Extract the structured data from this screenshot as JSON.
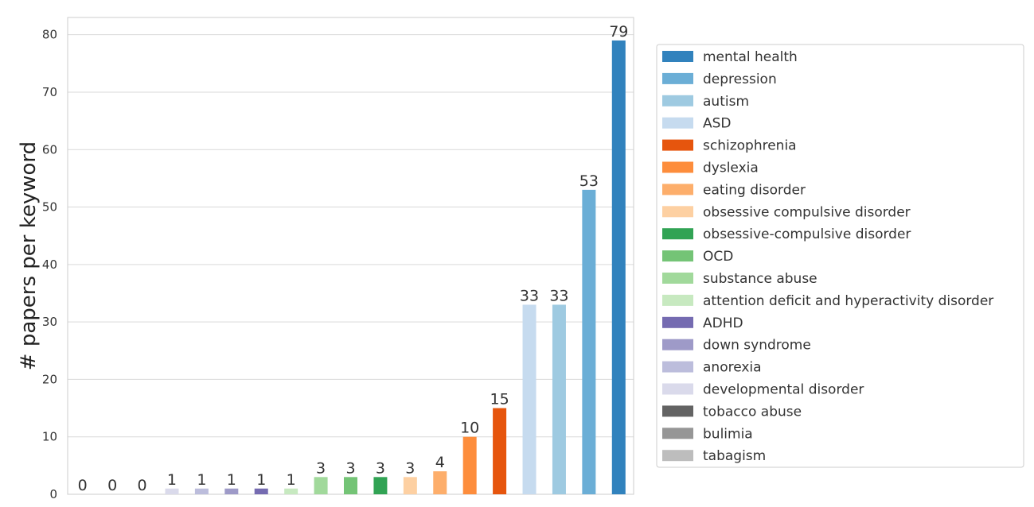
{
  "chart_data": {
    "type": "bar",
    "title": "",
    "xlabel": "",
    "ylabel": "# papers per keyword",
    "ylim": [
      0,
      83
    ],
    "yticks": [
      0,
      10,
      20,
      30,
      40,
      50,
      60,
      70,
      80
    ],
    "grid": true,
    "legend_position": "right",
    "bars": [
      {
        "category": "tabagism",
        "value": 0,
        "color": "#bdbdbd"
      },
      {
        "category": "bulimia",
        "value": 0,
        "color": "#969696"
      },
      {
        "category": "tobacco abuse",
        "value": 0,
        "color": "#636363"
      },
      {
        "category": "developmental disorder",
        "value": 1,
        "color": "#dadaeb"
      },
      {
        "category": "anorexia",
        "value": 1,
        "color": "#bcbddc"
      },
      {
        "category": "down syndrome",
        "value": 1,
        "color": "#9e9ac8"
      },
      {
        "category": "ADHD",
        "value": 1,
        "color": "#756bb1"
      },
      {
        "category": "attention deficit and hyperactivity disorder",
        "value": 1,
        "color": "#c7e9c0"
      },
      {
        "category": "substance abuse",
        "value": 3,
        "color": "#a1d99b"
      },
      {
        "category": "OCD",
        "value": 3,
        "color": "#74c476"
      },
      {
        "category": "obsessive-compulsive disorder",
        "value": 3,
        "color": "#31a354"
      },
      {
        "category": "obsessive compulsive disorder",
        "value": 3,
        "color": "#fdd0a2"
      },
      {
        "category": "eating disorder",
        "value": 4,
        "color": "#fdae6b"
      },
      {
        "category": "dyslexia",
        "value": 10,
        "color": "#fd8d3c"
      },
      {
        "category": "schizophrenia",
        "value": 15,
        "color": "#e6550d"
      },
      {
        "category": "ASD",
        "value": 33,
        "color": "#c6dbef"
      },
      {
        "category": "autism",
        "value": 33,
        "color": "#9ecae1"
      },
      {
        "category": "depression",
        "value": 53,
        "color": "#6baed6"
      },
      {
        "category": "mental health",
        "value": 79,
        "color": "#3182bd"
      }
    ],
    "legend": [
      {
        "label": "mental health",
        "color": "#3182bd"
      },
      {
        "label": "depression",
        "color": "#6baed6"
      },
      {
        "label": "autism",
        "color": "#9ecae1"
      },
      {
        "label": "ASD",
        "color": "#c6dbef"
      },
      {
        "label": "schizophrenia",
        "color": "#e6550d"
      },
      {
        "label": "dyslexia",
        "color": "#fd8d3c"
      },
      {
        "label": "eating disorder",
        "color": "#fdae6b"
      },
      {
        "label": "obsessive compulsive disorder",
        "color": "#fdd0a2"
      },
      {
        "label": "obsessive-compulsive disorder",
        "color": "#31a354"
      },
      {
        "label": "OCD",
        "color": "#74c476"
      },
      {
        "label": "substance abuse",
        "color": "#a1d99b"
      },
      {
        "label": "attention deficit and hyperactivity disorder",
        "color": "#c7e9c0"
      },
      {
        "label": "ADHD",
        "color": "#756bb1"
      },
      {
        "label": "down syndrome",
        "color": "#9e9ac8"
      },
      {
        "label": "anorexia",
        "color": "#bcbddc"
      },
      {
        "label": "developmental disorder",
        "color": "#dadaeb"
      },
      {
        "label": "tobacco abuse",
        "color": "#636363"
      },
      {
        "label": "bulimia",
        "color": "#969696"
      },
      {
        "label": "tabagism",
        "color": "#bdbdbd"
      }
    ]
  }
}
